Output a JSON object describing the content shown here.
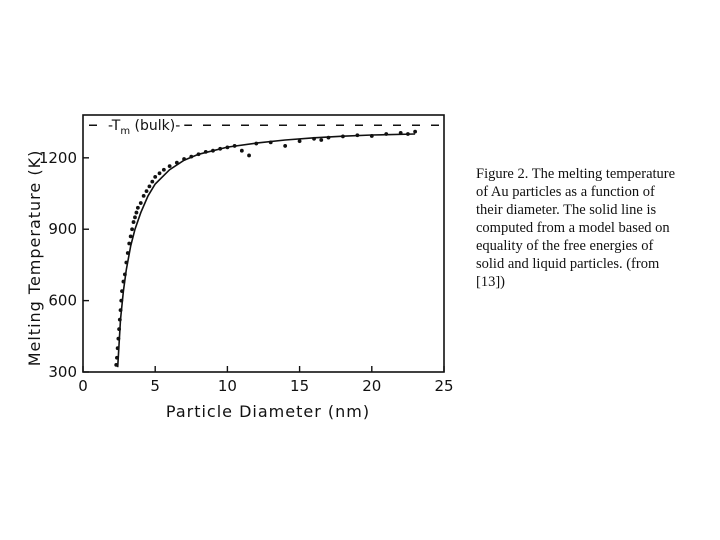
{
  "chart_data": {
    "type": "scatter",
    "xlabel": "Particle Diameter (nm)",
    "ylabel": "Melting Temperature (K)",
    "xlim": [
      0,
      25
    ],
    "ylim": [
      300,
      1380
    ],
    "x_ticks": [
      "0",
      "5",
      "10",
      "15",
      "20",
      "25"
    ],
    "y_ticks": [
      "300",
      "600",
      "900",
      "1200"
    ],
    "reference_line": {
      "label": "-T",
      "label_sub": "m",
      "label_rest": " (bulk)-",
      "y": 1337
    },
    "series": [
      {
        "kind": "points",
        "points": [
          [
            2.3,
            330
          ],
          [
            2.35,
            360
          ],
          [
            2.4,
            400
          ],
          [
            2.45,
            440
          ],
          [
            2.5,
            480
          ],
          [
            2.55,
            520
          ],
          [
            2.6,
            560
          ],
          [
            2.65,
            600
          ],
          [
            2.7,
            640
          ],
          [
            2.8,
            680
          ],
          [
            2.9,
            710
          ],
          [
            3.0,
            760
          ],
          [
            3.1,
            800
          ],
          [
            3.2,
            840
          ],
          [
            3.3,
            870
          ],
          [
            3.4,
            900
          ],
          [
            3.5,
            930
          ],
          [
            3.6,
            950
          ],
          [
            3.7,
            970
          ],
          [
            3.8,
            990
          ],
          [
            4.0,
            1010
          ],
          [
            4.2,
            1040
          ],
          [
            4.4,
            1060
          ],
          [
            4.6,
            1080
          ],
          [
            4.8,
            1100
          ],
          [
            5.0,
            1120
          ],
          [
            5.3,
            1135
          ],
          [
            5.6,
            1150
          ],
          [
            6.0,
            1165
          ],
          [
            6.5,
            1180
          ],
          [
            7.0,
            1195
          ],
          [
            7.5,
            1205
          ],
          [
            8.0,
            1215
          ],
          [
            8.5,
            1225
          ],
          [
            9.0,
            1230
          ],
          [
            9.5,
            1238
          ],
          [
            10.0,
            1244
          ],
          [
            10.5,
            1250
          ],
          [
            11.0,
            1230
          ],
          [
            11.5,
            1210
          ],
          [
            12.0,
            1260
          ],
          [
            13.0,
            1265
          ],
          [
            14.0,
            1250
          ],
          [
            15.0,
            1270
          ],
          [
            16.0,
            1280
          ],
          [
            16.5,
            1275
          ],
          [
            17.0,
            1285
          ],
          [
            18.0,
            1290
          ],
          [
            19.0,
            1295
          ],
          [
            20.0,
            1292
          ],
          [
            21.0,
            1300
          ],
          [
            22.0,
            1305
          ],
          [
            22.5,
            1300
          ],
          [
            23.0,
            1310
          ]
        ]
      },
      {
        "kind": "line",
        "points": [
          [
            2.4,
            320
          ],
          [
            2.5,
            420
          ],
          [
            2.6,
            520
          ],
          [
            2.8,
            640
          ],
          [
            3.0,
            730
          ],
          [
            3.3,
            830
          ],
          [
            3.6,
            900
          ],
          [
            4.0,
            970
          ],
          [
            4.5,
            1040
          ],
          [
            5.0,
            1090
          ],
          [
            6.0,
            1150
          ],
          [
            7.0,
            1190
          ],
          [
            8.0,
            1215
          ],
          [
            10.0,
            1245
          ],
          [
            12.0,
            1262
          ],
          [
            14.0,
            1275
          ],
          [
            16.0,
            1284
          ],
          [
            18.0,
            1291
          ],
          [
            20.0,
            1296
          ],
          [
            23.0,
            1300
          ]
        ]
      }
    ]
  },
  "caption": {
    "lines": [
      "Figure 2.  The melting temperature",
      "of Au particles as a function of",
      "their diameter.  The solid line is",
      "computed from a model based on",
      "equality of the free energies of",
      "solid and liquid particles.  (from",
      "[13])"
    ]
  }
}
